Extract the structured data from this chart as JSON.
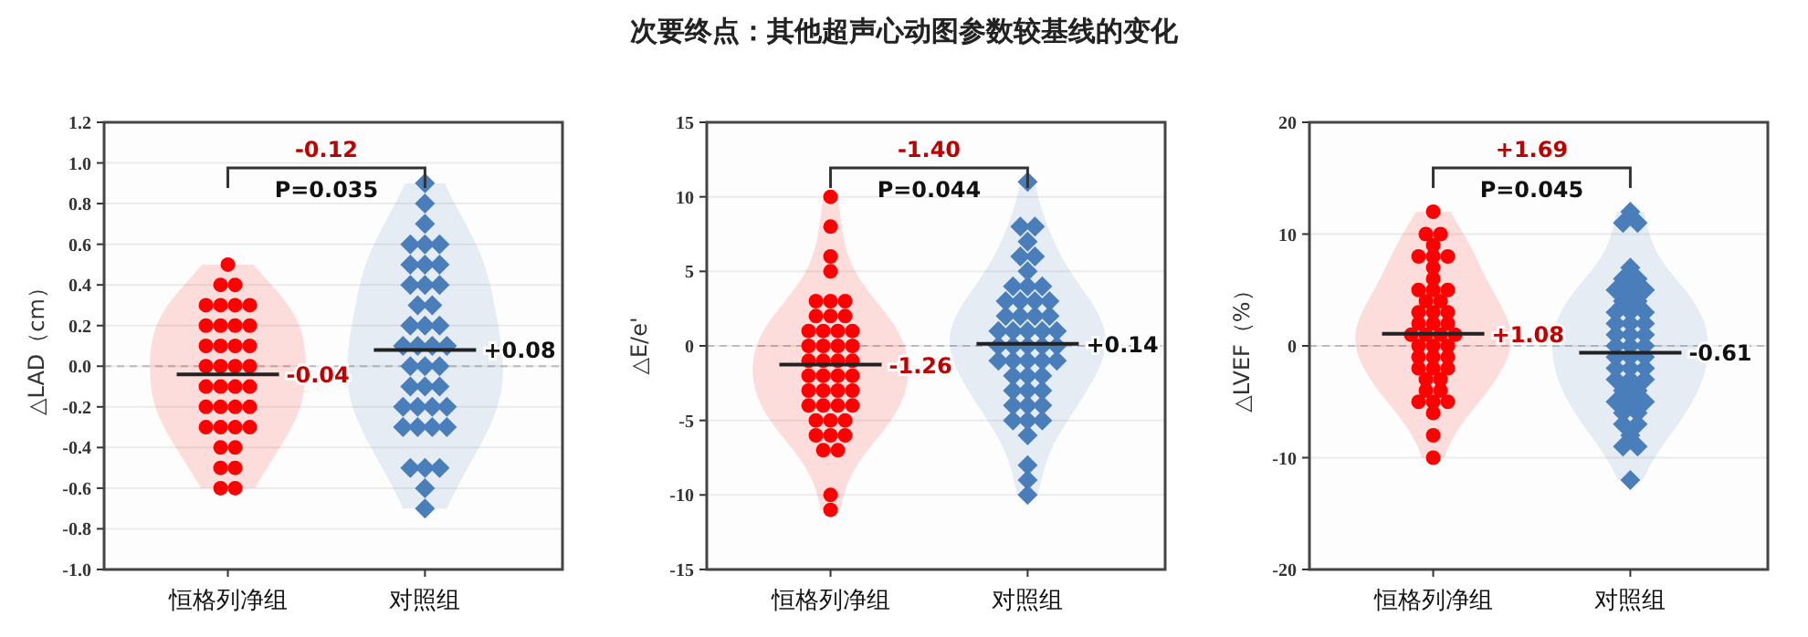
{
  "chart_data": [
    {
      "type": "scatter",
      "ylabel": "△LAD（cm）",
      "categories": [
        "恒格列净组",
        "对照组"
      ],
      "ylim": [
        -1,
        1.2
      ],
      "yticks": [
        {
          "value": -1,
          "label": "-1.0"
        },
        {
          "value": -0.8,
          "label": "-0.8"
        },
        {
          "value": -0.6,
          "label": "-0.6"
        },
        {
          "value": -0.4,
          "label": "-0.4"
        },
        {
          "value": -0.2,
          "label": "-0.2"
        },
        {
          "value": 0,
          "label": "0.0"
        },
        {
          "value": 0.2,
          "label": "0.2"
        },
        {
          "value": 0.4,
          "label": "0.4"
        },
        {
          "value": 0.6,
          "label": "0.6"
        },
        {
          "value": 0.8,
          "label": "0.8"
        },
        {
          "value": 1,
          "label": "1.0"
        },
        {
          "value": 1.2,
          "label": "1.2"
        }
      ],
      "grid": "y",
      "ref_lines": [
        {
          "axis": "y",
          "value": 0,
          "color": "#bbbbbb",
          "line_style": "dashed"
        }
      ],
      "series": [
        {
          "color": "#ff0000",
          "marker": "circle",
          "x": [
            "恒格列净组",
            "恒格列净组",
            "恒格列净组",
            "恒格列净组",
            "恒格列净组",
            "恒格列净组",
            "恒格列净组",
            "恒格列净组",
            "恒格列净组",
            "恒格列净组",
            "恒格列净组",
            "恒格列净组",
            "恒格列净组",
            "恒格列净组",
            "恒格列净组",
            "恒格列净组",
            "恒格列净组",
            "恒格列净组",
            "恒格列净组",
            "恒格列净组",
            "恒格列净组",
            "恒格列净组",
            "恒格列净组",
            "恒格列净组",
            "恒格列净组",
            "恒格列净组",
            "恒格列净组",
            "恒格列净组",
            "恒格列净组",
            "恒格列净组",
            "恒格列净组",
            "恒格列净组",
            "恒格列净组",
            "恒格列净组",
            "恒格列净组",
            "恒格列净组",
            "恒格列净组"
          ],
          "values": [
            0.5,
            0.4,
            0.4,
            0.3,
            0.3,
            0.3,
            0.3,
            0.2,
            0.2,
            0.2,
            0.2,
            0.1,
            0.1,
            0.1,
            0.1,
            0,
            0,
            0,
            0,
            -0.1,
            -0.1,
            -0.1,
            -0.1,
            -0.2,
            -0.2,
            -0.2,
            -0.2,
            -0.3,
            -0.3,
            -0.3,
            -0.3,
            -0.4,
            -0.4,
            -0.5,
            -0.5,
            -0.6,
            -0.6
          ]
        },
        {
          "color": "#4a7ebb",
          "marker": "diamond",
          "x": [
            "对照组",
            "对照组",
            "对照组",
            "对照组",
            "对照组",
            "对照组",
            "对照组",
            "对照组",
            "对照组",
            "对照组",
            "对照组",
            "对照组",
            "对照组",
            "对照组",
            "对照组",
            "对照组",
            "对照组",
            "对照组",
            "对照组",
            "对照组",
            "对照组",
            "对照组",
            "对照组",
            "对照组",
            "对照组",
            "对照组",
            "对照组",
            "对照组",
            "对照组",
            "对照组",
            "对照组",
            "对照组",
            "对照组",
            "对照组",
            "对照组",
            "对照组",
            "对照组",
            "对照组",
            "对照组",
            "对照组"
          ],
          "values": [
            0.9,
            0.8,
            0.7,
            0.6,
            0.6,
            0.6,
            0.5,
            0.5,
            0.5,
            0.4,
            0.4,
            0.4,
            0.3,
            0.3,
            0.2,
            0.2,
            0.2,
            0.1,
            0.1,
            0.1,
            0.1,
            0,
            0,
            0,
            -0.1,
            -0.1,
            -0.1,
            -0.2,
            -0.2,
            -0.2,
            -0.2,
            -0.3,
            -0.3,
            -0.3,
            -0.3,
            -0.5,
            -0.5,
            -0.5,
            -0.6,
            -0.7
          ]
        }
      ],
      "annotations": [
        {
          "text": "-0.04",
          "x": "恒格列净组",
          "y": -0.04
        },
        {
          "text": "+0.08",
          "x": "对照组",
          "y": 0.08
        },
        "-0.12",
        "P=0.035"
      ]
    },
    {
      "type": "scatter",
      "title": "次要终点：其他超声心动图参数较基线的变化",
      "ylabel": "△E/e'",
      "categories": [
        "恒格列净组",
        "对照组"
      ],
      "ylim": [
        -15,
        15
      ],
      "yticks": [
        -15,
        -10,
        -5,
        0,
        5,
        10,
        15
      ],
      "grid": "y",
      "ref_lines": [
        {
          "axis": "y",
          "value": 0,
          "color": "#bbbbbb",
          "line_style": "dashed"
        }
      ],
      "series": [
        {
          "color": "#ff0000",
          "marker": "circle",
          "x": [
            "恒格列净组",
            "恒格列净组",
            "恒格列净组",
            "恒格列净组",
            "恒格列净组",
            "恒格列净组",
            "恒格列净组",
            "恒格列净组",
            "恒格列净组",
            "恒格列净组",
            "恒格列净组",
            "恒格列净组",
            "恒格列净组",
            "恒格列净组",
            "恒格列净组",
            "恒格列净组",
            "恒格列净组",
            "恒格列净组",
            "恒格列净组",
            "恒格列净组",
            "恒格列净组",
            "恒格列净组",
            "恒格列净组",
            "恒格列净组",
            "恒格列净组",
            "恒格列净组",
            "恒格列净组",
            "恒格列净组",
            "恒格列净组",
            "恒格列净组",
            "恒格列净组",
            "恒格列净组",
            "恒格列净组",
            "恒格列净组",
            "恒格列净组",
            "恒格列净组",
            "恒格列净组",
            "恒格列净组",
            "恒格列净组",
            "恒格列净组",
            "恒格列净组",
            "恒格列净组",
            "恒格列净组",
            "恒格列净组"
          ],
          "values": [
            10,
            8,
            6,
            5,
            3,
            3,
            3,
            2,
            2,
            2,
            1,
            1,
            1,
            1,
            0,
            0,
            0,
            0,
            -1,
            -1,
            -1,
            -1,
            -2,
            -2,
            -2,
            -2,
            -3,
            -3,
            -3,
            -3,
            -4,
            -4,
            -4,
            -4,
            -5,
            -5,
            -5,
            -6,
            -6,
            -6,
            -7,
            -7,
            -10,
            -11
          ]
        },
        {
          "color": "#4a7ebb",
          "marker": "diamond",
          "x": [
            "对照组",
            "对照组",
            "对照组",
            "对照组",
            "对照组",
            "对照组",
            "对照组",
            "对照组",
            "对照组",
            "对照组",
            "对照组",
            "对照组",
            "对照组",
            "对照组",
            "对照组",
            "对照组",
            "对照组",
            "对照组",
            "对照组",
            "对照组",
            "对照组",
            "对照组",
            "对照组",
            "对照组",
            "对照组",
            "对照组",
            "对照组",
            "对照组",
            "对照组",
            "对照组",
            "对照组",
            "对照组",
            "对照组",
            "对照组",
            "对照组",
            "对照组",
            "对照组",
            "对照组",
            "对照组",
            "对照组",
            "对照组",
            "对照组",
            "对照组",
            "对照组",
            "对照组",
            "对照组",
            "对照组",
            "对照组",
            "对照组"
          ],
          "values": [
            11,
            8,
            8,
            7,
            6,
            6,
            5,
            4,
            4,
            4,
            3,
            3,
            3,
            3,
            2,
            2,
            2,
            2,
            1,
            1,
            1,
            1,
            1,
            0,
            0,
            0,
            0,
            0,
            -1,
            -1,
            -1,
            -1,
            -1,
            -2,
            -2,
            -2,
            -3,
            -3,
            -3,
            -4,
            -4,
            -4,
            -5,
            -5,
            -5,
            -6,
            -8,
            -9,
            -10
          ]
        }
      ],
      "annotations": [
        {
          "text": "-1.26",
          "x": "恒格列净组",
          "y": -1.26
        },
        {
          "text": "+0.14",
          "x": "对照组",
          "y": 0.14
        },
        "-1.40",
        "P=0.044"
      ]
    },
    {
      "type": "scatter",
      "ylabel": "△LVEF（%）",
      "categories": [
        "恒格列净组",
        "对照组"
      ],
      "ylim": [
        -20,
        20
      ],
      "yticks": [
        -20,
        -10,
        0,
        10,
        20
      ],
      "grid": "y",
      "ref_lines": [
        {
          "axis": "y",
          "value": 0,
          "color": "#bbbbbb",
          "line_style": "dashed"
        }
      ],
      "series": [
        {
          "color": "#ff0000",
          "marker": "circle",
          "x": [
            "恒格列净组",
            "恒格列净组",
            "恒格列净组",
            "恒格列净组",
            "恒格列净组",
            "恒格列净组",
            "恒格列净组",
            "恒格列净组",
            "恒格列净组",
            "恒格列净组",
            "恒格列净组",
            "恒格列净组",
            "恒格列净组",
            "恒格列净组",
            "恒格列净组",
            "恒格列净组",
            "恒格列净组",
            "恒格列净组",
            "恒格列净组",
            "恒格列净组",
            "恒格列净组",
            "恒格列净组",
            "恒格列净组",
            "恒格列净组",
            "恒格列净组",
            "恒格列净组",
            "恒格列净组",
            "恒格列净组",
            "恒格列净组",
            "恒格列净组",
            "恒格列净组",
            "恒格列净组",
            "恒格列净组",
            "恒格列净组",
            "恒格列净组",
            "恒格列净组",
            "恒格列净组",
            "恒格列净组",
            "恒格列净组",
            "恒格列净组",
            "恒格列净组",
            "恒格列净组",
            "恒格列净组"
          ],
          "values": [
            12,
            10,
            10,
            9,
            8,
            8,
            8,
            7,
            6,
            5,
            5,
            5,
            4,
            4,
            3,
            3,
            3,
            2,
            2,
            2,
            1,
            1,
            1,
            1,
            0,
            0,
            0,
            -1,
            -1,
            -1,
            -2,
            -2,
            -2,
            -3,
            -3,
            -4,
            -4,
            -5,
            -5,
            -5,
            -6,
            -8,
            -10
          ]
        },
        {
          "color": "#4a7ebb",
          "marker": "diamond",
          "x": [
            "对照组",
            "对照组",
            "对照组",
            "对照组",
            "对照组",
            "对照组",
            "对照组",
            "对照组",
            "对照组",
            "对照组",
            "对照组",
            "对照组",
            "对照组",
            "对照组",
            "对照组",
            "对照组",
            "对照组",
            "对照组",
            "对照组",
            "对照组",
            "对照组",
            "对照组",
            "对照组",
            "对照组",
            "对照组",
            "对照组",
            "对照组",
            "对照组",
            "对照组",
            "对照组",
            "对照组",
            "对照组",
            "对照组",
            "对照组",
            "对照组",
            "对照组",
            "对照组",
            "对照组",
            "对照组",
            "对照组",
            "对照组",
            "对照组",
            "对照组",
            "对照组",
            "对照组"
          ],
          "values": [
            12,
            11,
            11,
            7,
            6,
            6,
            5,
            5,
            5,
            4,
            4,
            3,
            3,
            3,
            2,
            2,
            2,
            1,
            1,
            1,
            0,
            0,
            0,
            -1,
            -1,
            -1,
            -2,
            -2,
            -2,
            -3,
            -3,
            -3,
            -4,
            -4,
            -5,
            -5,
            -5,
            -6,
            -6,
            -7,
            -7,
            -8,
            -9,
            -9,
            -12
          ]
        }
      ],
      "annotations": [
        {
          "text": "+1.08",
          "x": "恒格列净组",
          "y": 1.08
        },
        {
          "text": "-0.61",
          "x": "对照组",
          "y": -0.61
        },
        "+1.69",
        "P=0.045"
      ]
    }
  ]
}
